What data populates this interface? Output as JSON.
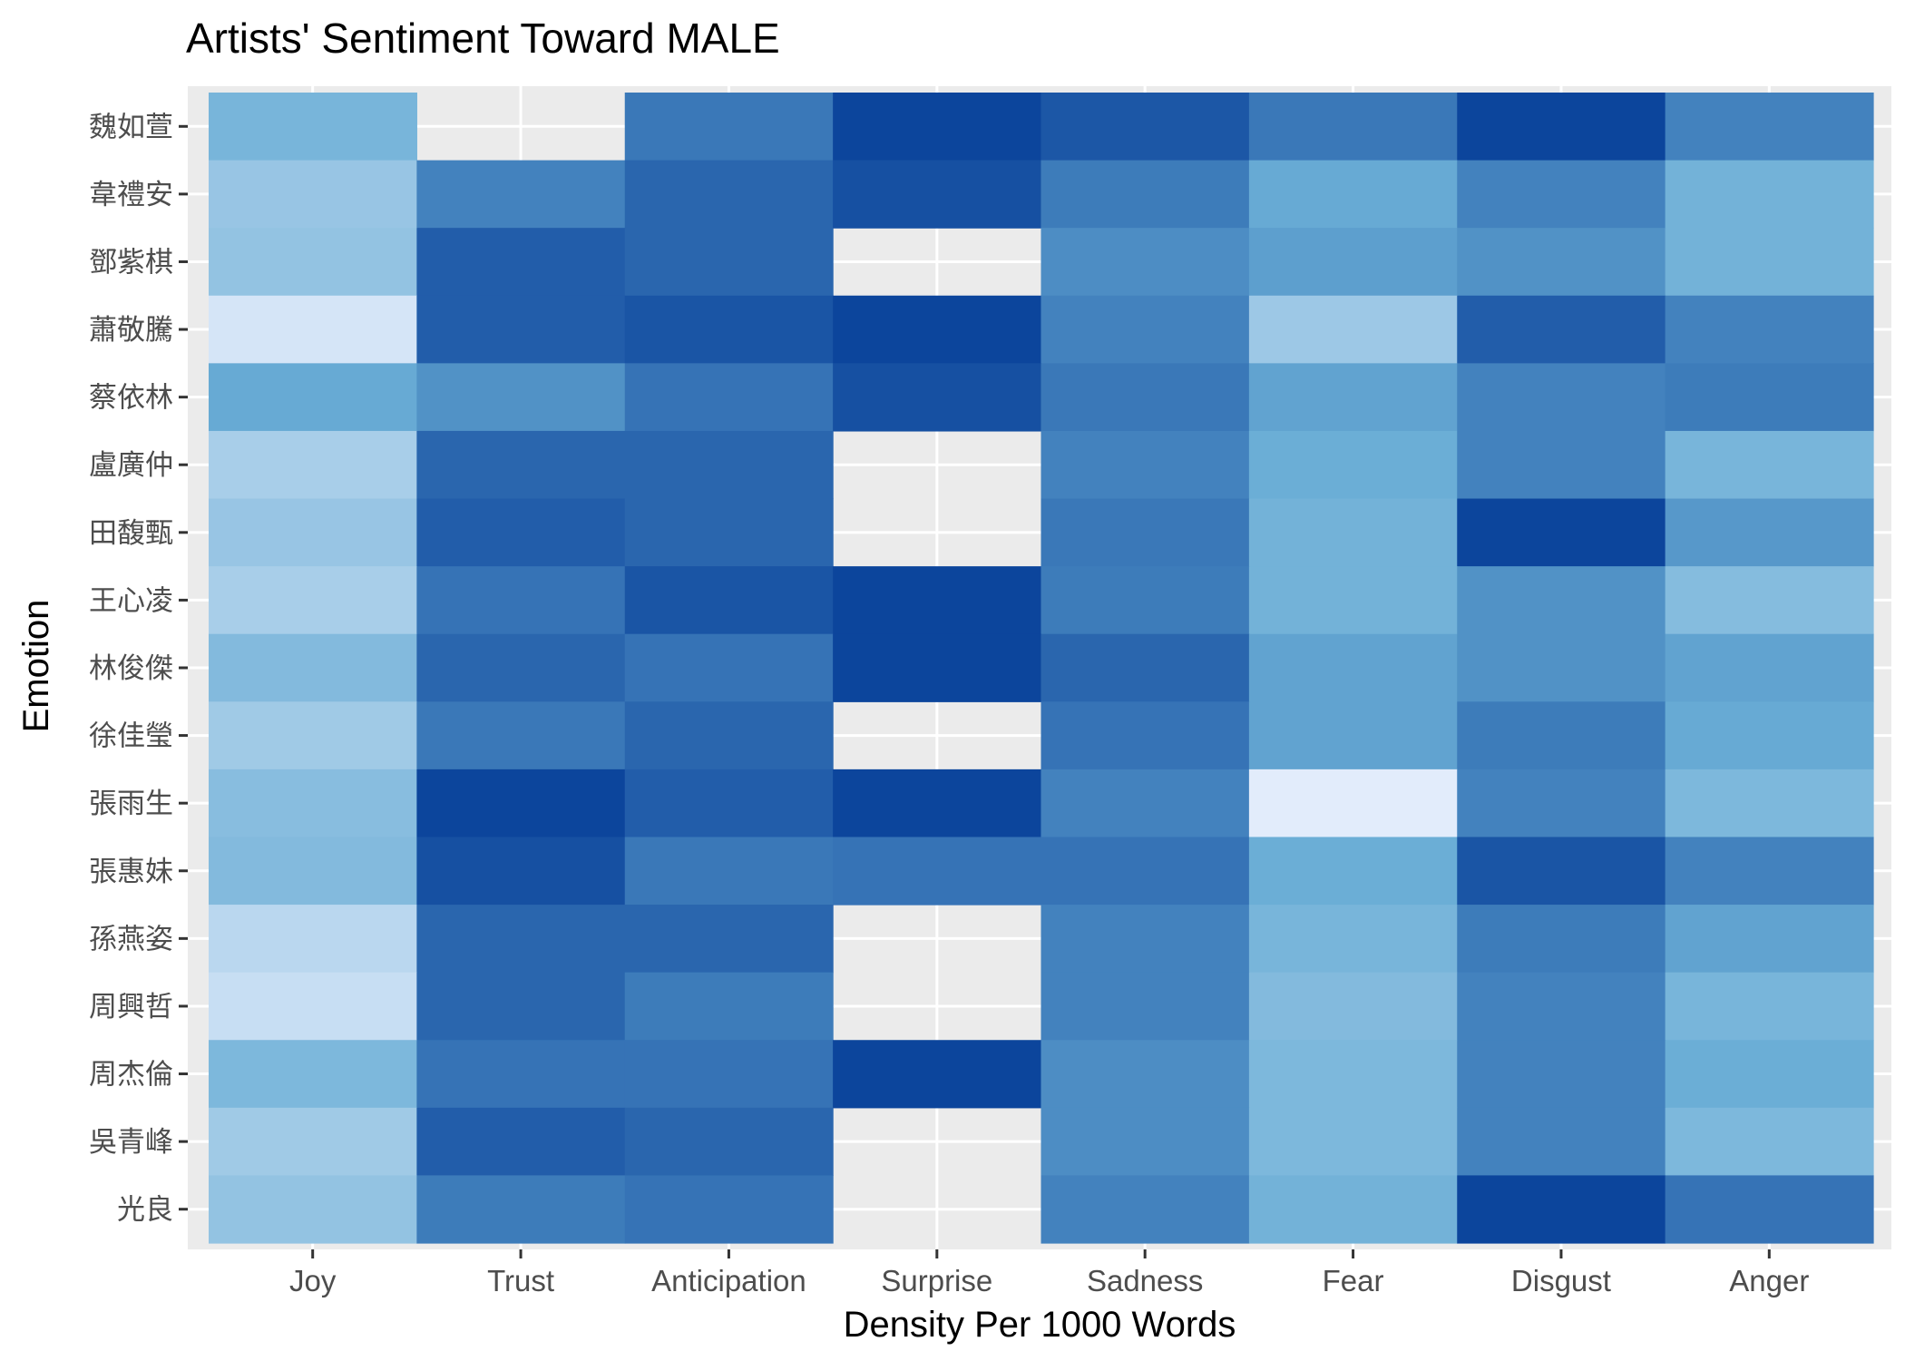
{
  "chart_data": {
    "type": "heatmap",
    "title": "Artists' Sentiment Toward MALE",
    "xlabel": "Density Per 1000 Words",
    "ylabel": "Emotion",
    "x_categories": [
      "Joy",
      "Trust",
      "Anticipation",
      "Surprise",
      "Sadness",
      "Fear",
      "Disgust",
      "Anger"
    ],
    "y_categories": [
      "魏如萱",
      "韋禮安",
      "鄧紫棋",
      "蕭敬騰",
      "蔡依林",
      "盧廣仲",
      "田馥甄",
      "王心凌",
      "林俊傑",
      "徐佳瑩",
      "張雨生",
      "張惠妹",
      "孫燕姿",
      "周興哲",
      "周杰倫",
      "吳青峰",
      "光良"
    ],
    "value_range": [
      0,
      1
    ],
    "values": [
      [
        0.45,
        null,
        0.75,
        0.98,
        0.9,
        0.75,
        0.98,
        0.7
      ],
      [
        0.33,
        0.7,
        0.83,
        0.93,
        0.73,
        0.52,
        0.7,
        0.47
      ],
      [
        0.35,
        0.87,
        0.83,
        null,
        0.65,
        0.57,
        0.63,
        0.47
      ],
      [
        0.1,
        0.87,
        0.91,
        0.98,
        0.7,
        0.31,
        0.87,
        0.7
      ],
      [
        0.52,
        0.63,
        0.77,
        0.93,
        0.75,
        0.55,
        0.7,
        0.73
      ],
      [
        0.27,
        0.83,
        0.83,
        null,
        0.7,
        0.5,
        0.7,
        0.45
      ],
      [
        0.33,
        0.87,
        0.83,
        null,
        0.75,
        0.47,
        0.98,
        0.6
      ],
      [
        0.27,
        0.77,
        0.91,
        0.98,
        0.73,
        0.47,
        0.63,
        0.4
      ],
      [
        0.41,
        0.83,
        0.77,
        0.98,
        0.83,
        0.55,
        0.63,
        0.55
      ],
      [
        0.3,
        0.75,
        0.83,
        null,
        0.77,
        0.55,
        0.73,
        0.52
      ],
      [
        0.39,
        0.98,
        0.87,
        0.98,
        0.7,
        0.05,
        0.7,
        0.43
      ],
      [
        0.41,
        0.93,
        0.75,
        0.77,
        0.77,
        0.5,
        0.91,
        0.7
      ],
      [
        0.2,
        0.83,
        0.83,
        null,
        0.7,
        0.45,
        0.73,
        0.55
      ],
      [
        0.15,
        0.83,
        0.73,
        null,
        0.7,
        0.41,
        0.7,
        0.45
      ],
      [
        0.43,
        0.77,
        0.77,
        0.98,
        0.65,
        0.43,
        0.7,
        0.5
      ],
      [
        0.3,
        0.87,
        0.83,
        null,
        0.65,
        0.43,
        0.7,
        0.43
      ],
      [
        0.35,
        0.73,
        0.77,
        null,
        0.7,
        0.47,
        0.98,
        0.77
      ]
    ],
    "missing_cells": "grey background shown",
    "color_scale": {
      "type": "sequential",
      "low": "#eff3ff",
      "high": "#08419a"
    },
    "grid": true,
    "legend": "none"
  },
  "colors": {
    "panel_background": "#ebebeb",
    "gridline": "#ffffff",
    "tick_text": "#4d4d4d"
  }
}
